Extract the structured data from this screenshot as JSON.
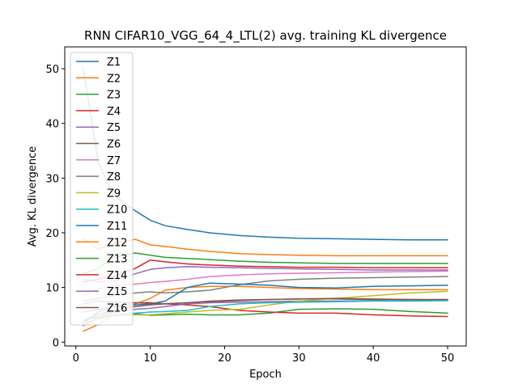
{
  "chart_data": {
    "type": "line",
    "title": "RNN CIFAR10_VGG_64_4_LTL(2) avg. training KL divergence",
    "xlabel": "Epoch",
    "ylabel": "Avg. KL divergence",
    "xlim": [
      -1.5,
      52.5
    ],
    "ylim": [
      -0.7,
      54
    ],
    "xticks": [
      0,
      10,
      20,
      30,
      40,
      50
    ],
    "yticks": [
      0,
      10,
      20,
      30,
      40,
      50
    ],
    "grid": false,
    "legend": "upper-left",
    "x": [
      1,
      3,
      5,
      8,
      10,
      12,
      15,
      18,
      22,
      26,
      30,
      35,
      40,
      45,
      50
    ],
    "series": [
      {
        "name": "Z1",
        "color": "#1f77b4",
        "values": [
          50,
          33,
          27,
          24,
          22.3,
          21.3,
          20.6,
          20,
          19.5,
          19.2,
          19,
          18.9,
          18.8,
          18.7,
          18.7
        ]
      },
      {
        "name": "Z2",
        "color": "#ff7f0e",
        "values": [
          2.0,
          3.2,
          5.0,
          7.0,
          8.0,
          9.5,
          10.0,
          10.2,
          10.2,
          10.0,
          9.8,
          9.7,
          9.6,
          9.6,
          9.6
        ]
      },
      {
        "name": "Z3",
        "color": "#2ca02c",
        "values": [
          4.0,
          4.6,
          5.0,
          5.2,
          4.9,
          5.0,
          5.1,
          5.0,
          5.0,
          5.3,
          6.0,
          6.1,
          6.0,
          5.6,
          5.3
        ]
      },
      {
        "name": "Z4",
        "color": "#d62728",
        "values": [
          3.5,
          5.5,
          6.5,
          7.2,
          7.2,
          7.0,
          6.8,
          6.5,
          5.8,
          5.5,
          5.3,
          5.3,
          5.0,
          4.8,
          4.7
        ]
      },
      {
        "name": "Z5",
        "color": "#9467bd",
        "values": [
          3.0,
          4.5,
          5.5,
          6.0,
          6.2,
          6.5,
          7.0,
          7.2,
          7.3,
          7.4,
          7.5,
          7.5,
          7.6,
          7.6,
          7.6
        ]
      },
      {
        "name": "Z6",
        "color": "#8c564b",
        "values": [
          4.0,
          5.0,
          5.8,
          6.5,
          6.8,
          7.0,
          7.2,
          7.5,
          7.7,
          7.8,
          7.9,
          7.9,
          7.8,
          7.8,
          7.7
        ]
      },
      {
        "name": "Z7",
        "color": "#e377c2",
        "values": [
          8.5,
          9.8,
          10.3,
          10.6,
          10.9,
          11.1,
          11.5,
          12.0,
          12.3,
          12.5,
          12.6,
          12.7,
          12.8,
          12.9,
          13.0
        ]
      },
      {
        "name": "Z8",
        "color": "#7f7f7f",
        "values": [
          7.5,
          8.0,
          8.5,
          9.0,
          9.2,
          9.0,
          9.2,
          9.5,
          10.5,
          11.2,
          11.5,
          11.7,
          11.8,
          11.9,
          12.0
        ]
      },
      {
        "name": "Z9",
        "color": "#bcbd22",
        "values": [
          3.5,
          4.2,
          4.8,
          5.0,
          5.0,
          5.2,
          5.5,
          5.8,
          6.0,
          6.8,
          7.5,
          8.0,
          8.5,
          9.0,
          9.3
        ]
      },
      {
        "name": "Z10",
        "color": "#17becf",
        "values": [
          4.0,
          4.5,
          5.0,
          5.3,
          5.5,
          5.6,
          5.8,
          6.5,
          7.0,
          7.2,
          7.3,
          7.4,
          7.5,
          7.5,
          7.6
        ]
      },
      {
        "name": "Z11",
        "color": "#1f77b4",
        "values": [
          5.5,
          6.0,
          6.5,
          6.8,
          7.0,
          7.5,
          10.0,
          10.8,
          10.6,
          10.4,
          10.0,
          9.9,
          10.2,
          10.3,
          10.4
        ]
      },
      {
        "name": "Z12",
        "color": "#ff7f0e",
        "values": [
          19.0,
          17.0,
          18.0,
          18.8,
          17.8,
          17.5,
          17.0,
          16.6,
          16.2,
          16.0,
          15.9,
          15.8,
          15.8,
          15.8,
          15.8
        ]
      },
      {
        "name": "Z13",
        "color": "#2ca02c",
        "values": [
          12.5,
          13.5,
          15.5,
          16.3,
          15.9,
          15.5,
          15.3,
          15.1,
          14.8,
          14.6,
          14.5,
          14.4,
          14.4,
          14.4,
          14.4
        ]
      },
      {
        "name": "Z14",
        "color": "#d62728",
        "values": [
          11.0,
          11.5,
          12.0,
          13.5,
          15.0,
          14.7,
          14.3,
          14.1,
          13.9,
          13.8,
          13.7,
          13.7,
          13.6,
          13.6,
          13.6
        ]
      },
      {
        "name": "Z15",
        "color": "#9467bd",
        "values": [
          11.5,
          11.0,
          11.2,
          12.5,
          13.3,
          13.6,
          13.8,
          13.7,
          13.6,
          13.5,
          13.4,
          13.3,
          13.2,
          13.2,
          13.2
        ]
      },
      {
        "name": "Z16",
        "color": "#8c564b",
        "values": [
          7.0,
          7.5,
          7.3,
          7.2,
          7.1,
          7.0,
          7.2,
          7.4,
          7.6,
          7.8,
          7.9,
          8.0,
          7.9,
          7.8,
          7.8
        ]
      }
    ]
  }
}
